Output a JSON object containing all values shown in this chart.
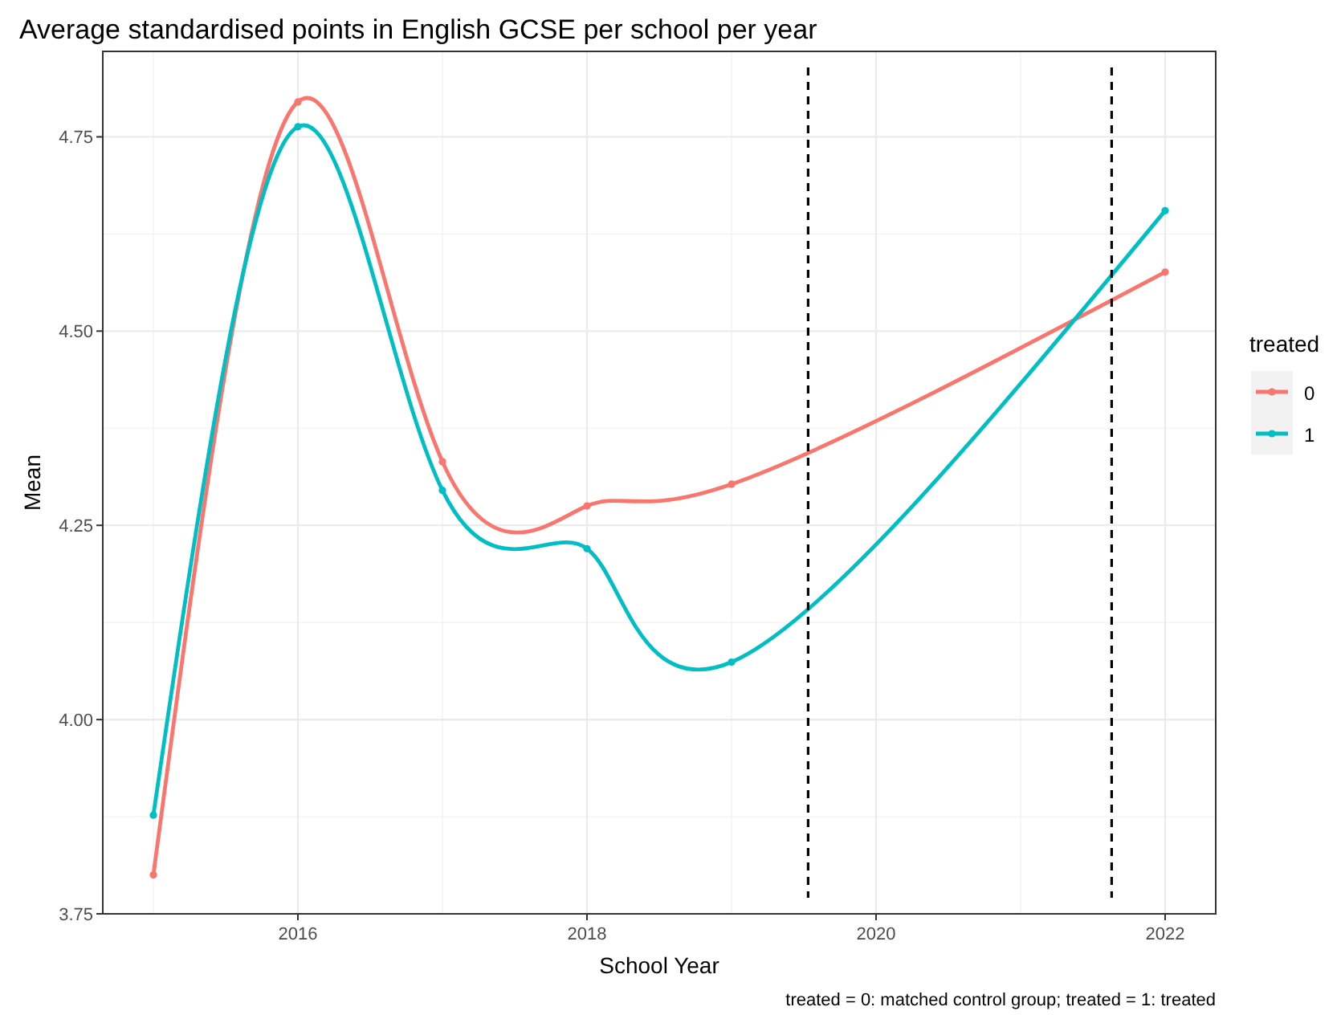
{
  "chart_data": {
    "type": "line",
    "title": "Average standardised points in English GCSE per school per year",
    "xlabel": "School Year",
    "ylabel": "Mean",
    "legend_title": "treated",
    "x": [
      2015,
      2016,
      2017,
      2018,
      2019,
      2022
    ],
    "series": [
      {
        "name": "0",
        "color": "#f8766d",
        "values": [
          3.8,
          4.795,
          4.332,
          4.275,
          4.303,
          4.576
        ]
      },
      {
        "name": "1",
        "color": "#00bfc4",
        "values": [
          3.877,
          4.763,
          4.295,
          4.22,
          4.074,
          4.655
        ]
      }
    ],
    "xlim": [
      2014.65,
      2022.35
    ],
    "xticks": [
      2016,
      2018,
      2020,
      2022
    ],
    "ylim": [
      3.75,
      4.86
    ],
    "yticks": [
      {
        "value": 3.75,
        "label": "3.75"
      },
      {
        "value": 4,
        "label": "4.00"
      },
      {
        "value": 4.25,
        "label": "4.25"
      },
      {
        "value": 4.5,
        "label": "4.50"
      },
      {
        "value": 4.75,
        "label": "4.75"
      }
    ],
    "ref_lines": [
      {
        "axis": "x",
        "value": 2019.53,
        "color": "#000000",
        "line_style": "dashed"
      },
      {
        "axis": "x",
        "value": 2021.63,
        "color": "#000000",
        "line_style": "dashed"
      }
    ],
    "annotations": [
      "treated = 0: matched control group; treated = 1: treated"
    ],
    "grid": true,
    "legend": "right",
    "marker": "circle",
    "line_style": "solid"
  }
}
